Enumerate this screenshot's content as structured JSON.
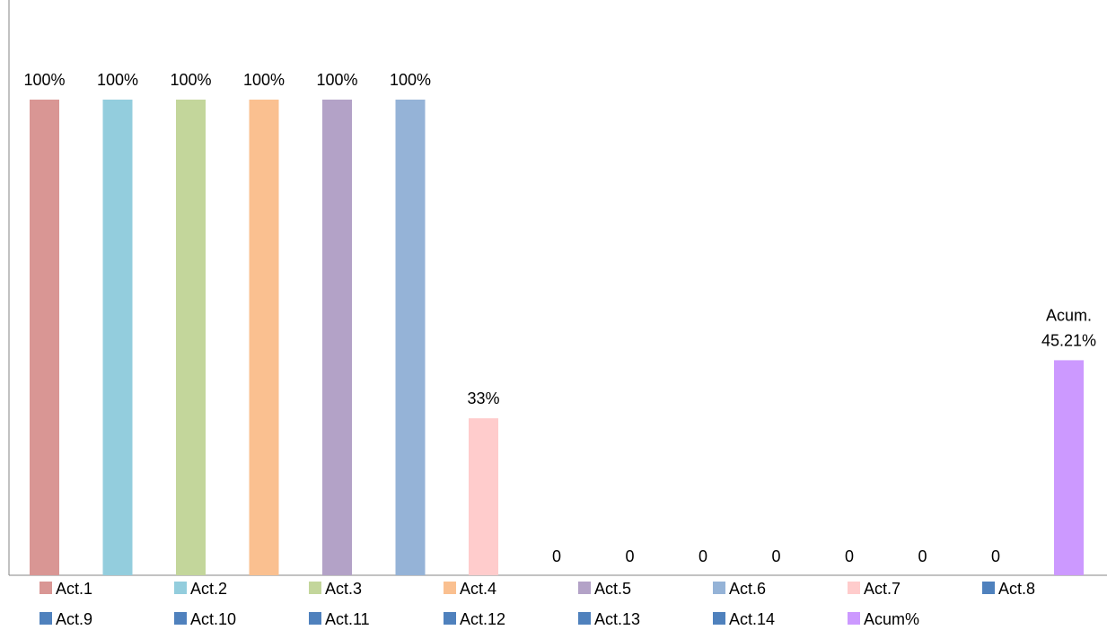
{
  "chart_data": {
    "type": "bar",
    "title": "",
    "xlabel": "",
    "ylabel": "",
    "ylim": [
      0,
      1
    ],
    "grid": false,
    "legend_position": "bottom",
    "series": [
      {
        "name": "Act.1",
        "value": 1.0,
        "label": "100%",
        "color": "#D99694"
      },
      {
        "name": "Act.2",
        "value": 1.0,
        "label": "100%",
        "color": "#93CDDD"
      },
      {
        "name": "Act.3",
        "value": 1.0,
        "label": "100%",
        "color": "#C3D69B"
      },
      {
        "name": "Act.4",
        "value": 1.0,
        "label": "100%",
        "color": "#FAC090"
      },
      {
        "name": "Act.5",
        "value": 1.0,
        "label": "100%",
        "color": "#B3A2C7"
      },
      {
        "name": "Act.6",
        "value": 1.0,
        "label": "100%",
        "color": "#95B3D7"
      },
      {
        "name": "Act.7",
        "value": 0.33,
        "label": "33%",
        "color": "#FFCCCC"
      },
      {
        "name": "Act.8",
        "value": 0,
        "label": "0",
        "color": "#4F81BD"
      },
      {
        "name": "Act.9",
        "value": 0,
        "label": "0",
        "color": "#4F81BD"
      },
      {
        "name": "Act.10",
        "value": 0,
        "label": "0",
        "color": "#4F81BD"
      },
      {
        "name": "Act.11",
        "value": 0,
        "label": "0",
        "color": "#4F81BD"
      },
      {
        "name": "Act.12",
        "value": 0,
        "label": "0",
        "color": "#4F81BD"
      },
      {
        "name": "Act.13",
        "value": 0,
        "label": "0",
        "color": "#4F81BD"
      },
      {
        "name": "Act.14",
        "value": 0,
        "label": "0",
        "color": "#4F81BD"
      },
      {
        "name": "Acum%",
        "value": 0.4521,
        "label": [
          "Acum.",
          "45.21%"
        ],
        "color": "#CC99FF"
      }
    ]
  }
}
